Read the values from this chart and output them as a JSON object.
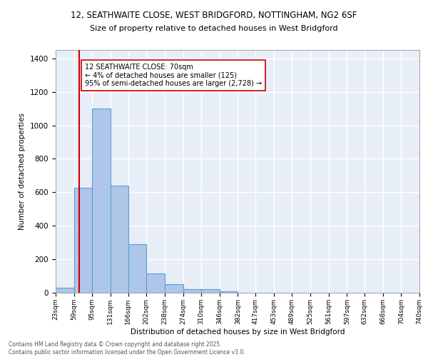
{
  "title_line1": "12, SEATHWAITE CLOSE, WEST BRIDGFORD, NOTTINGHAM, NG2 6SF",
  "title_line2": "Size of property relative to detached houses in West Bridgford",
  "xlabel": "Distribution of detached houses by size in West Bridgford",
  "ylabel": "Number of detached properties",
  "bin_edges": [
    23,
    59,
    95,
    131,
    166,
    202,
    238,
    274,
    310,
    346,
    382,
    417,
    453,
    489,
    525,
    561,
    597,
    632,
    668,
    704,
    740
  ],
  "bar_heights": [
    30,
    625,
    1100,
    640,
    290,
    115,
    50,
    20,
    20,
    10,
    0,
    0,
    0,
    0,
    0,
    0,
    0,
    0,
    0,
    0
  ],
  "bar_color": "#aec6e8",
  "bar_edge_color": "#5a9fd4",
  "vline_x": 70,
  "vline_color": "#cc0000",
  "annotation_line1": "12 SEATHWAITE CLOSE: 70sqm",
  "annotation_line2": "← 4% of detached houses are smaller (125)",
  "annotation_line3": "95% of semi-detached houses are larger (2,728) →",
  "annotation_box_color": "#ffffff",
  "annotation_box_edge": "#cc0000",
  "ylim": [
    0,
    1450
  ],
  "yticks": [
    0,
    200,
    400,
    600,
    800,
    1000,
    1200,
    1400
  ],
  "bg_color": "#e8eef8",
  "grid_color": "#ffffff",
  "footer_line1": "Contains HM Land Registry data © Crown copyright and database right 2025.",
  "footer_line2": "Contains public sector information licensed under the Open Government Licence v3.0."
}
